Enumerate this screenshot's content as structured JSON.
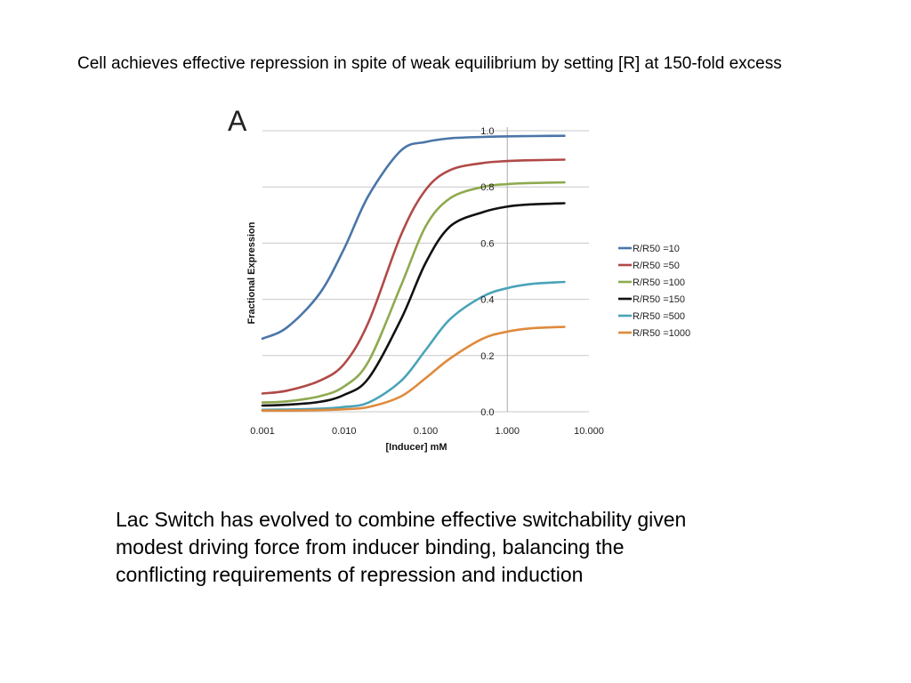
{
  "slide": {
    "title": "Cell achieves effective repression in spite of weak equilibrium by setting [R] at 150-fold excess",
    "body": "Lac Switch has evolved to combine effective switchability given modest driving force from inducer binding, balancing the conflicting requirements of repression and induction"
  },
  "chart_data": {
    "type": "line",
    "panel_label": "A",
    "title": "",
    "xlabel": "[Inducer] mM",
    "ylabel": "Fractional Expression",
    "x_scale": "log",
    "xlim": [
      0.001,
      10
    ],
    "ylim": [
      0,
      1
    ],
    "x_ticks": [
      "0.001",
      "0.010",
      "0.100",
      "1.000",
      "10.000"
    ],
    "y_ticks": [
      "0.0",
      "0.2",
      "0.4",
      "0.6",
      "0.8",
      "1.0"
    ],
    "grid": "horizontal",
    "legend_position": "right",
    "x": [
      0.001,
      0.002,
      0.005,
      0.01,
      0.02,
      0.05,
      0.1,
      0.2,
      0.5,
      1,
      2,
      5
    ],
    "series": [
      {
        "name": "R/R50 =10",
        "color": "#4a76a8",
        "values": [
          0.26,
          0.3,
          0.42,
          0.58,
          0.77,
          0.93,
          0.96,
          0.973,
          0.978,
          0.98,
          0.981,
          0.982
        ]
      },
      {
        "name": "R/R50 =50",
        "color": "#b04a47",
        "values": [
          0.065,
          0.075,
          0.11,
          0.17,
          0.32,
          0.63,
          0.79,
          0.86,
          0.885,
          0.892,
          0.895,
          0.897
        ]
      },
      {
        "name": "R/R50 =100",
        "color": "#8eaa4f",
        "values": [
          0.033,
          0.037,
          0.055,
          0.09,
          0.18,
          0.45,
          0.66,
          0.76,
          0.8,
          0.81,
          0.814,
          0.816
        ]
      },
      {
        "name": "R/R50 =150",
        "color": "#111111",
        "values": [
          0.022,
          0.025,
          0.035,
          0.06,
          0.12,
          0.33,
          0.53,
          0.66,
          0.71,
          0.73,
          0.738,
          0.742
        ]
      },
      {
        "name": "R/R50 =500",
        "color": "#4aa3b8",
        "values": [
          0.007,
          0.008,
          0.011,
          0.017,
          0.033,
          0.11,
          0.22,
          0.33,
          0.41,
          0.44,
          0.455,
          0.462
        ]
      },
      {
        "name": "R/R50 =1000",
        "color": "#e08a3c",
        "values": [
          0.004,
          0.004,
          0.006,
          0.009,
          0.017,
          0.055,
          0.12,
          0.19,
          0.26,
          0.285,
          0.297,
          0.302
        ]
      }
    ]
  }
}
